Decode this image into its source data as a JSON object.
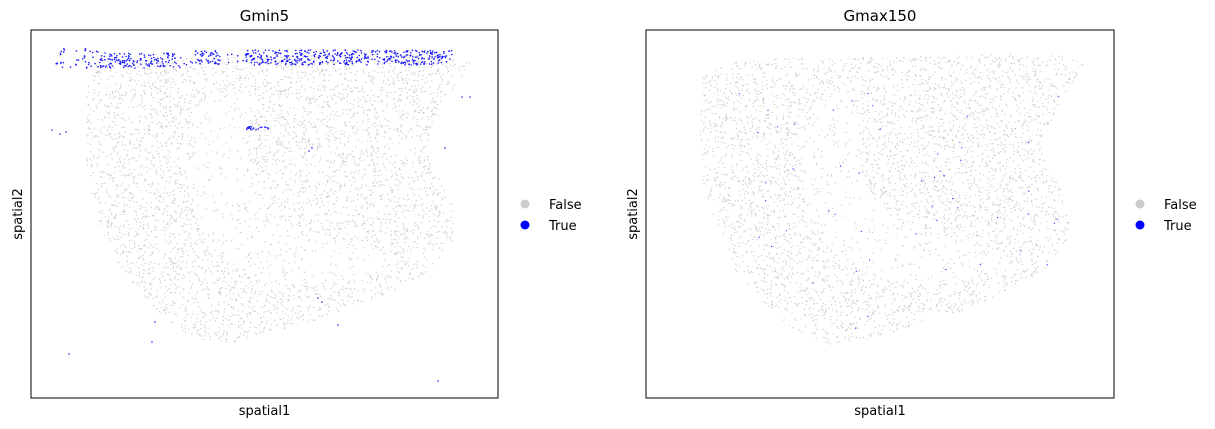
{
  "chart_data": [
    {
      "type": "scatter",
      "title": "Gmin5",
      "xlabel": "spatial1",
      "ylabel": "spatial2",
      "xticks": false,
      "yticks": false,
      "grid": false,
      "legend": {
        "placement": "right-center",
        "entries": [
          {
            "label": "False",
            "color": "#cccccc"
          },
          {
            "label": "True",
            "color": "#0000ff"
          }
        ]
      },
      "highlight": "top-edge"
    },
    {
      "type": "scatter",
      "title": "Gmax150",
      "xlabel": "spatial1",
      "ylabel": "spatial2",
      "xticks": false,
      "yticks": false,
      "grid": false,
      "legend": {
        "placement": "right-center",
        "entries": [
          {
            "label": "False",
            "color": "#cccccc"
          },
          {
            "label": "True",
            "color": "#0000ff"
          }
        ]
      },
      "highlight": "sparse"
    }
  ]
}
